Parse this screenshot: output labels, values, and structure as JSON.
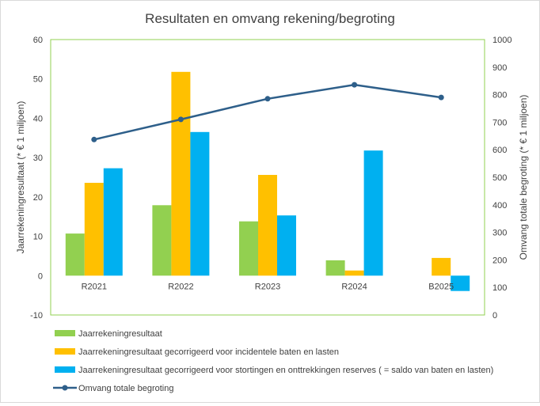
{
  "chart_data": {
    "type": "bar",
    "title": "Resultaten en omvang rekening/begroting",
    "ylabel": "Jaarrekeningresultaat (* € 1 miljoen)",
    "y2label": "Omvang totale begroting (* € 1 miljoen)",
    "ylim": [
      -10,
      60
    ],
    "y2lim": [
      0,
      1000
    ],
    "yticks": [
      "-10",
      "0",
      "10",
      "20",
      "30",
      "40",
      "50",
      "60"
    ],
    "y2ticks": [
      "0",
      "100",
      "200",
      "300",
      "400",
      "500",
      "600",
      "700",
      "800",
      "900",
      "1000"
    ],
    "categories": [
      "R2021",
      "R2022",
      "R2023",
      "R2024",
      "B2025"
    ],
    "series": [
      {
        "name": "Jaarrekeningresultaat",
        "type": "bar",
        "color": "#92d050",
        "values": [
          10.7,
          17.9,
          13.8,
          3.9,
          null
        ]
      },
      {
        "name": "Jaarrekeningresultaat gecorrigeerd voor incidentele baten en lasten",
        "type": "bar",
        "color": "#ffc000",
        "values": [
          23.6,
          51.8,
          25.6,
          1.3,
          4.5
        ]
      },
      {
        "name": "Jaarrekeningresultaat gecorrigeerd voor stortingen en onttrekkingen reserves ( = saldo van baten en lasten)",
        "type": "bar",
        "color": "#00b0f0",
        "values": [
          27.3,
          36.5,
          15.3,
          31.8,
          -3.9
        ]
      },
      {
        "name": "Omvang totale begroting",
        "type": "line",
        "axis": "y2",
        "color": "#2e5f8a",
        "values": [
          637,
          710,
          785,
          836,
          790
        ]
      }
    ],
    "legend_position": "bottom",
    "grid": false,
    "plot_border_color": "#92d050"
  }
}
